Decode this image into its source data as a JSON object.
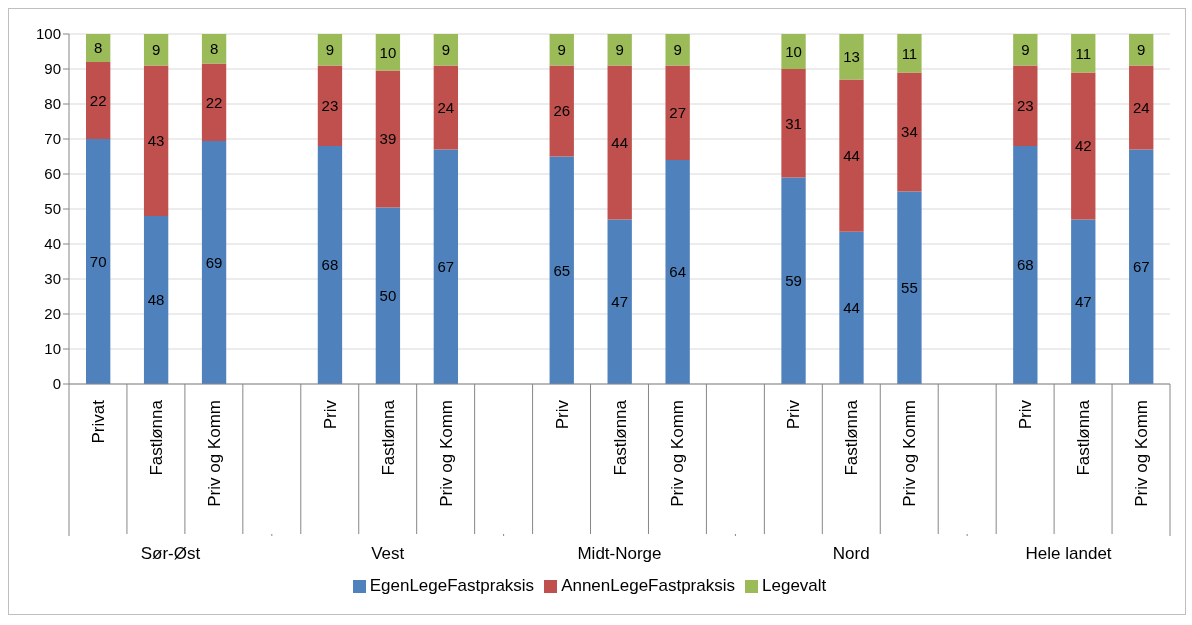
{
  "chart_data": {
    "type": "bar",
    "stacked": true,
    "categories": [
      "Privat",
      "Fastlønna",
      "Priv og Komm",
      null,
      "Priv",
      "Fastlønna",
      "Priv og Komm",
      null,
      "Priv",
      "Fastlønna",
      "Priv og Komm",
      null,
      "Priv",
      "Fastlønna",
      "Priv og Komm",
      null,
      "Priv",
      "Fastlønna",
      "Priv og Komm"
    ],
    "series": [
      {
        "name": "EgenLegeFastpraksis",
        "color": "#4f81bd",
        "values": [
          70,
          48,
          69.4,
          null,
          68,
          50.4,
          67,
          null,
          65,
          47,
          64,
          null,
          59,
          43.5,
          55,
          null,
          68,
          47,
          67
        ],
        "value_labels": [
          "70",
          "48",
          "69",
          null,
          "68",
          "50",
          "67",
          null,
          "65",
          "47",
          "64",
          null,
          "59",
          "44",
          "55",
          null,
          "68",
          "47",
          "67"
        ]
      },
      {
        "name": "AnnenLegeFastpraksis",
        "color": "#c0504d",
        "values": [
          22,
          43,
          22.2,
          null,
          23,
          39.2,
          24,
          null,
          26,
          44,
          27,
          null,
          31,
          43.5,
          34,
          null,
          23,
          42,
          24
        ],
        "value_labels": [
          "22",
          "43",
          "22",
          null,
          "23",
          "39",
          "24",
          null,
          "26",
          "44",
          "27",
          null,
          "31",
          "44",
          "34",
          null,
          "23",
          "42",
          "24"
        ]
      },
      {
        "name": "Legevalt",
        "color": "#9bbb59",
        "values": [
          8,
          9,
          8.4,
          null,
          9,
          10.4,
          9,
          null,
          9,
          9,
          9,
          null,
          10,
          13,
          11,
          null,
          9,
          11,
          9
        ],
        "value_labels": [
          "8",
          "9",
          "8",
          null,
          "9",
          "10",
          "9",
          null,
          "9",
          "9",
          "9",
          null,
          "10",
          "13",
          "11",
          null,
          "9",
          "11",
          "9"
        ]
      }
    ],
    "annotations": [
      "Sør-Øst",
      "Vest",
      "Midt-Norge",
      "Nord",
      "Hele landet"
    ],
    "ylim": [
      0,
      100
    ],
    "yticks": [
      0,
      10,
      20,
      30,
      40,
      50,
      60,
      70,
      80,
      90,
      100
    ],
    "grid": "y",
    "legend": "bottom"
  }
}
